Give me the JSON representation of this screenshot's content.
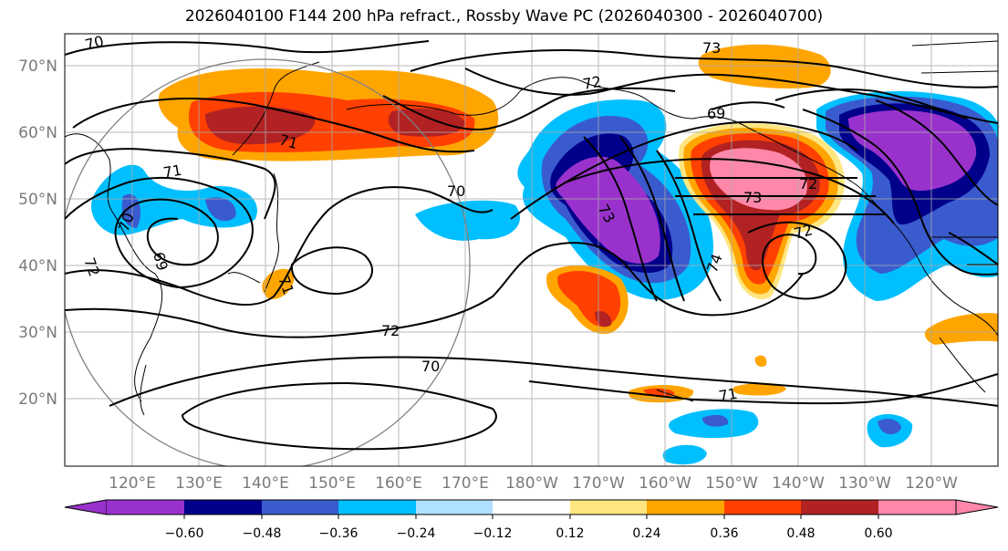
{
  "title": "2026040100 F144 200 hPa refract., Rossby Wave PC (2026040300 - 2026040700)",
  "map": {
    "lat_labels": [
      "70°N",
      "60°N",
      "50°N",
      "40°N",
      "30°N",
      "20°N"
    ],
    "lon_labels": [
      "120°E",
      "130°E",
      "140°E",
      "150°E",
      "160°E",
      "170°E",
      "180°W",
      "170°W",
      "160°W",
      "150°W",
      "140°W",
      "130°W",
      "120°W"
    ],
    "contour_labels": [
      "73",
      "72",
      "69",
      "71",
      "70",
      "71",
      "70",
      "70",
      "73",
      "72",
      "72",
      "74",
      "72",
      "71",
      "69",
      "73",
      "72",
      "70",
      "71"
    ],
    "colors": {
      "neg_060": "#9932cc",
      "neg_048": "#00008b",
      "neg_036": "#3a5bcd",
      "neg_024": "#00bfff",
      "neg_012": "#b0e0ff",
      "zero": "#ffffff",
      "pos_012": "#ffe680",
      "pos_024": "#ffa500",
      "pos_036": "#ff4000",
      "pos_048": "#b22222",
      "pos_060": "#ff88aa"
    }
  },
  "colorbar": {
    "tick_labels": [
      "−0.60",
      "−0.48",
      "−0.36",
      "−0.24",
      "−0.12",
      "0.12",
      "0.24",
      "0.36",
      "0.48",
      "0.60"
    ],
    "colors": [
      "#9932cc",
      "#00008b",
      "#3a5bcd",
      "#00bfff",
      "#b0e0ff",
      "#ffffff",
      "#ffe680",
      "#ffa500",
      "#ff4000",
      "#b22222",
      "#ff88aa"
    ]
  }
}
